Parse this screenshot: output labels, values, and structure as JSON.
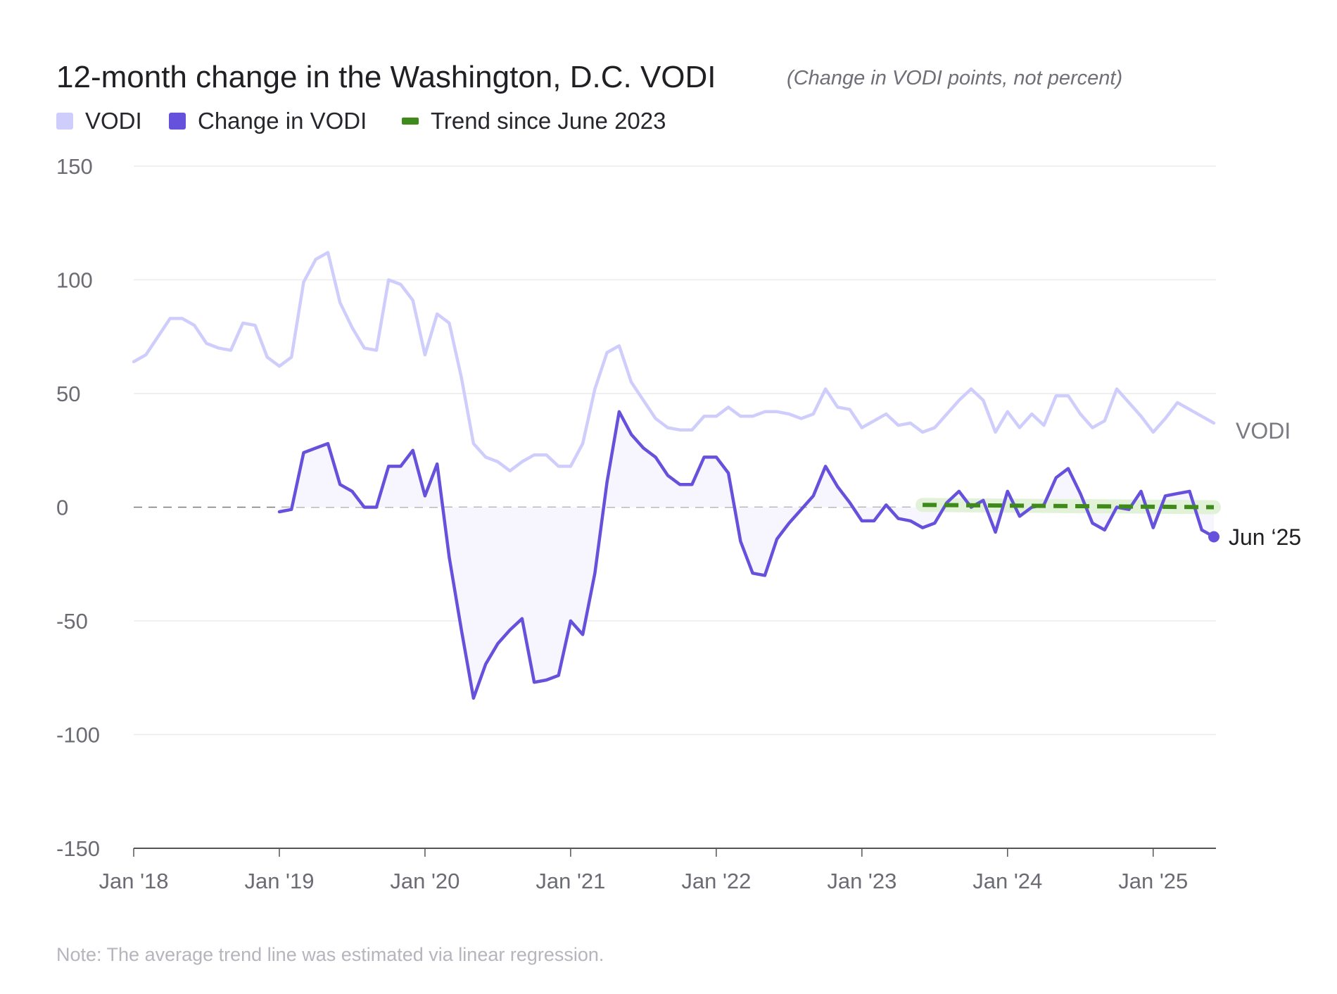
{
  "title": "12-month change in the Washington, D.C. VODI",
  "subtitle": "(Change in VODI points, not percent)",
  "legend": [
    {
      "label": "VODI",
      "color": "#cfcdfb"
    },
    {
      "label": "Change in VODI",
      "color": "#6551dc"
    },
    {
      "label": "Trend since June 2023",
      "color": "#3e8a1a"
    }
  ],
  "end_labels": {
    "vodi": "VODI",
    "change": "Jun ‘25"
  },
  "note": "Note: The average trend line was estimated via linear regression.",
  "colors": {
    "vodi_line": "#cfcdfb",
    "change_line": "#6551dc",
    "change_fill": "#f7f6fe",
    "trend_line": "#3e8a1a",
    "trend_halo": "#e2f2d8",
    "grid": "#ececec",
    "zero_line": "#7a7a7a",
    "axis": "#555555"
  },
  "chart_data": {
    "type": "line",
    "x_label": "",
    "y_label": "",
    "ylim": [
      -150,
      150
    ],
    "y_ticks": [
      150,
      100,
      50,
      0,
      -50,
      -100,
      -150
    ],
    "x_range": [
      "2018-01",
      "2025-06"
    ],
    "x_ticks": [
      {
        "date": "2018-01",
        "label": "Jan '18"
      },
      {
        "date": "2019-01",
        "label": "Jan '19"
      },
      {
        "date": "2020-01",
        "label": "Jan '20"
      },
      {
        "date": "2021-01",
        "label": "Jan '21"
      },
      {
        "date": "2022-01",
        "label": "Jan '22"
      },
      {
        "date": "2023-01",
        "label": "Jan '23"
      },
      {
        "date": "2024-01",
        "label": "Jan '24"
      },
      {
        "date": "2025-01",
        "label": "Jan '25"
      }
    ],
    "grid": true,
    "legend_position": "top-left",
    "series": [
      {
        "name": "VODI",
        "start": "2018-01",
        "values": [
          64,
          67,
          75,
          83,
          83,
          80,
          72,
          70,
          69,
          81,
          80,
          66,
          62,
          66,
          99,
          109,
          112,
          90,
          79,
          70,
          69,
          100,
          98,
          91,
          67,
          85,
          81,
          57,
          28,
          22,
          20,
          16,
          20,
          23,
          23,
          18,
          18,
          28,
          52,
          68,
          71,
          55,
          47,
          39,
          35,
          34,
          34,
          40,
          40,
          44,
          40,
          40,
          42,
          42,
          41,
          39,
          41,
          52,
          44,
          43,
          35,
          38,
          41,
          36,
          37,
          33,
          35,
          41,
          47,
          52,
          47,
          33,
          42,
          35,
          41,
          36,
          49,
          49,
          41,
          35,
          38,
          52,
          46,
          40,
          33,
          39,
          46,
          43,
          40,
          37
        ]
      },
      {
        "name": "Change in VODI",
        "start": "2019-01",
        "values": [
          -2,
          -1,
          24,
          26,
          28,
          10,
          7,
          0,
          0,
          18,
          18,
          25,
          5,
          19,
          -22,
          -54,
          -84,
          -69,
          -60,
          -54,
          -49,
          -77,
          -76,
          -74,
          -50,
          -56,
          -29,
          11,
          42,
          32,
          26,
          22,
          14,
          10,
          10,
          22,
          22,
          15,
          -15,
          -29,
          -30,
          -14,
          -7,
          -1,
          5,
          18,
          9,
          2,
          -6,
          -6,
          1,
          -5,
          -6,
          -9,
          -7,
          2,
          7,
          0,
          3,
          -11,
          7,
          -4,
          0,
          1,
          13,
          17,
          6,
          -7,
          -10,
          0,
          -1,
          7,
          -9,
          5,
          6,
          7,
          -10,
          -13
        ]
      },
      {
        "name": "Trend since June 2023",
        "start": "2023-06",
        "end": "2025-06",
        "values": [
          1,
          0
        ]
      }
    ]
  }
}
